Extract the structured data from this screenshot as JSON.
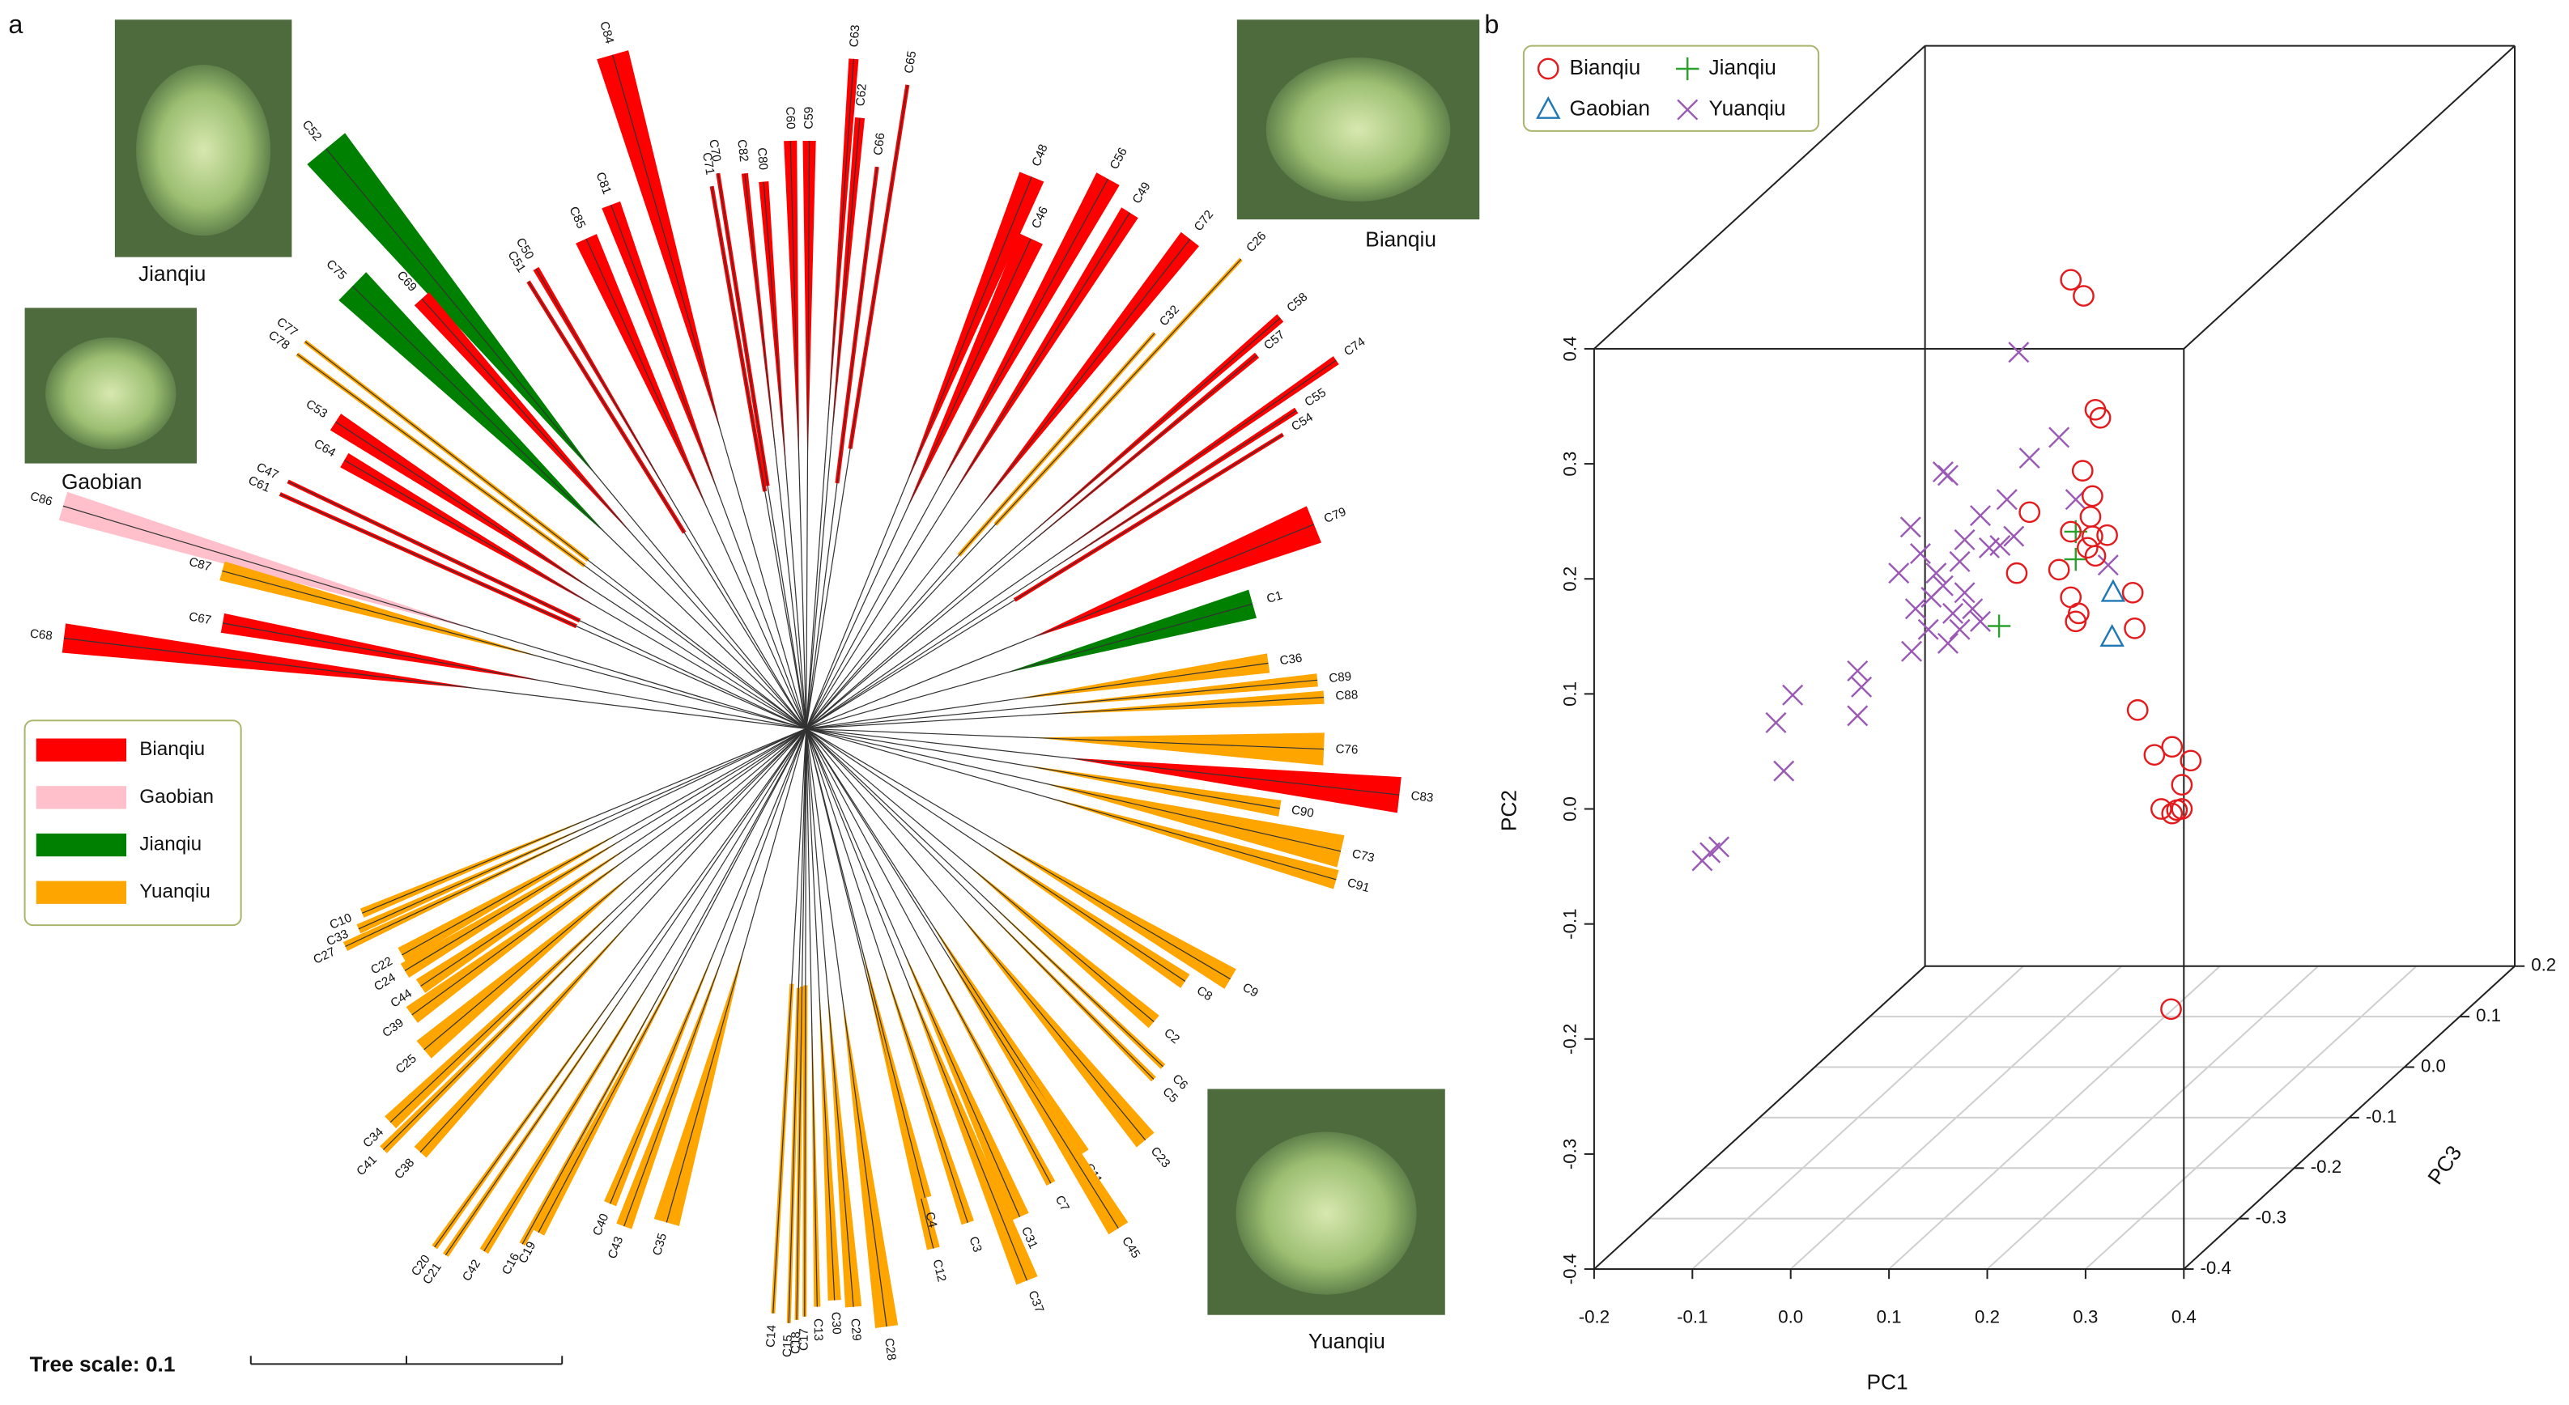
{
  "panel_labels": {
    "a": "a",
    "b": "b"
  },
  "photos": [
    {
      "caption": "Jianqiu"
    },
    {
      "caption": "Gaobian"
    },
    {
      "caption": "Bianqiu"
    },
    {
      "caption": "Yuanqiu"
    }
  ],
  "tree": {
    "legend": [
      {
        "name": "Bianqiu",
        "color": "#ff0000"
      },
      {
        "name": "Gaobian",
        "color": "#ffc0cb"
      },
      {
        "name": "Jianqiu",
        "color": "#008000"
      },
      {
        "name": "Yuanqiu",
        "color": "#ffa500"
      }
    ],
    "scale_label": "Tree scale: 0.1",
    "leaves": [
      {
        "label": "C84",
        "group": "Bianqiu"
      },
      {
        "label": "C81",
        "group": "Bianqiu"
      },
      {
        "label": "C85",
        "group": "Bianqiu"
      },
      {
        "label": "C50",
        "group": "Bianqiu"
      },
      {
        "label": "C51",
        "group": "Bianqiu"
      },
      {
        "label": "C52",
        "group": "Jianqiu"
      },
      {
        "label": "C69",
        "group": "Bianqiu"
      },
      {
        "label": "C75",
        "group": "Jianqiu"
      },
      {
        "label": "C77",
        "group": "Yuanqiu"
      },
      {
        "label": "C78",
        "group": "Yuanqiu"
      },
      {
        "label": "C53",
        "group": "Bianqiu"
      },
      {
        "label": "C64",
        "group": "Bianqiu"
      },
      {
        "label": "C47",
        "group": "Bianqiu"
      },
      {
        "label": "C61",
        "group": "Bianqiu"
      },
      {
        "label": "C86",
        "group": "Gaobian"
      },
      {
        "label": "C87",
        "group": "Yuanqiu"
      },
      {
        "label": "C67",
        "group": "Bianqiu"
      },
      {
        "label": "C68",
        "group": "Bianqiu"
      },
      {
        "label": "C70",
        "group": "Bianqiu"
      },
      {
        "label": "C71",
        "group": "Bianqiu"
      },
      {
        "label": "C82",
        "group": "Bianqiu"
      },
      {
        "label": "C80",
        "group": "Bianqiu"
      },
      {
        "label": "C60",
        "group": "Bianqiu"
      },
      {
        "label": "C59",
        "group": "Bianqiu"
      },
      {
        "label": "C63",
        "group": "Bianqiu"
      },
      {
        "label": "C62",
        "group": "Bianqiu"
      },
      {
        "label": "C65",
        "group": "Bianqiu"
      },
      {
        "label": "C66",
        "group": "Bianqiu"
      },
      {
        "label": "C48",
        "group": "Bianqiu"
      },
      {
        "label": "C46",
        "group": "Bianqiu"
      },
      {
        "label": "C56",
        "group": "Bianqiu"
      },
      {
        "label": "C49",
        "group": "Bianqiu"
      },
      {
        "label": "C72",
        "group": "Bianqiu"
      },
      {
        "label": "C26",
        "group": "Yuanqiu"
      },
      {
        "label": "C32",
        "group": "Yuanqiu"
      },
      {
        "label": "C58",
        "group": "Bianqiu"
      },
      {
        "label": "C57",
        "group": "Bianqiu"
      },
      {
        "label": "C74",
        "group": "Bianqiu"
      },
      {
        "label": "C55",
        "group": "Bianqiu"
      },
      {
        "label": "C54",
        "group": "Bianqiu"
      },
      {
        "label": "C79",
        "group": "Bianqiu"
      },
      {
        "label": "C1",
        "group": "Jianqiu"
      },
      {
        "label": "C36",
        "group": "Yuanqiu"
      },
      {
        "label": "C89",
        "group": "Yuanqiu"
      },
      {
        "label": "C88",
        "group": "Yuanqiu"
      },
      {
        "label": "C76",
        "group": "Yuanqiu"
      },
      {
        "label": "C83",
        "group": "Bianqiu"
      },
      {
        "label": "C90",
        "group": "Yuanqiu"
      },
      {
        "label": "C73",
        "group": "Yuanqiu"
      },
      {
        "label": "C91",
        "group": "Yuanqiu"
      },
      {
        "label": "C9",
        "group": "Yuanqiu"
      },
      {
        "label": "C8",
        "group": "Yuanqiu"
      },
      {
        "label": "C2",
        "group": "Yuanqiu"
      },
      {
        "label": "C6",
        "group": "Yuanqiu"
      },
      {
        "label": "C5",
        "group": "Yuanqiu"
      },
      {
        "label": "C23",
        "group": "Yuanqiu"
      },
      {
        "label": "C11",
        "group": "Yuanqiu"
      },
      {
        "label": "C45",
        "group": "Yuanqiu"
      },
      {
        "label": "C7",
        "group": "Yuanqiu"
      },
      {
        "label": "C31",
        "group": "Yuanqiu"
      },
      {
        "label": "C37",
        "group": "Yuanqiu"
      },
      {
        "label": "C3",
        "group": "Yuanqiu"
      },
      {
        "label": "C12",
        "group": "Yuanqiu"
      },
      {
        "label": "C4",
        "group": "Yuanqiu"
      },
      {
        "label": "C28",
        "group": "Yuanqiu"
      },
      {
        "label": "C29",
        "group": "Yuanqiu"
      },
      {
        "label": "C30",
        "group": "Yuanqiu"
      },
      {
        "label": "C13",
        "group": "Yuanqiu"
      },
      {
        "label": "C17",
        "group": "Yuanqiu"
      },
      {
        "label": "C18",
        "group": "Yuanqiu"
      },
      {
        "label": "C15",
        "group": "Yuanqiu"
      },
      {
        "label": "C14",
        "group": "Yuanqiu"
      },
      {
        "label": "C35",
        "group": "Yuanqiu"
      },
      {
        "label": "C43",
        "group": "Yuanqiu"
      },
      {
        "label": "C40",
        "group": "Yuanqiu"
      },
      {
        "label": "C19",
        "group": "Yuanqiu"
      },
      {
        "label": "C16",
        "group": "Yuanqiu"
      },
      {
        "label": "C42",
        "group": "Yuanqiu"
      },
      {
        "label": "C21",
        "group": "Yuanqiu"
      },
      {
        "label": "C20",
        "group": "Yuanqiu"
      },
      {
        "label": "C38",
        "group": "Yuanqiu"
      },
      {
        "label": "C41",
        "group": "Yuanqiu"
      },
      {
        "label": "C34",
        "group": "Yuanqiu"
      },
      {
        "label": "C25",
        "group": "Yuanqiu"
      },
      {
        "label": "C39",
        "group": "Yuanqiu"
      },
      {
        "label": "C44",
        "group": "Yuanqiu"
      },
      {
        "label": "C24",
        "group": "Yuanqiu"
      },
      {
        "label": "C22",
        "group": "Yuanqiu"
      },
      {
        "label": "C27",
        "group": "Yuanqiu"
      },
      {
        "label": "C33",
        "group": "Yuanqiu"
      },
      {
        "label": "C10",
        "group": "Yuanqiu"
      }
    ]
  },
  "chart_data": {
    "type": "scatter3d",
    "xlabel": "PC1",
    "ylabel": "PC2",
    "zlabel": "PC3",
    "xlim": [
      -0.2,
      0.4
    ],
    "ylim": [
      -0.4,
      0.4
    ],
    "zlim": [
      -0.4,
      0.2
    ],
    "xticks": [
      -0.2,
      -0.1,
      {
        "value": 0,
        "label": "0.0"
      },
      0.1,
      0.2,
      0.3,
      0.4
    ],
    "yticks": [
      -0.4,
      -0.3,
      -0.2,
      -0.1,
      {
        "value": 0,
        "label": "0.0"
      },
      0.1,
      0.2,
      0.3,
      0.4
    ],
    "zticks": [
      -0.4,
      -0.3,
      -0.2,
      -0.1,
      {
        "value": 0,
        "label": "0.0"
      },
      0.1,
      0.2
    ],
    "grid": true,
    "legend": "top-left",
    "series": [
      {
        "name": "Bianqiu",
        "color": "#e41a1c",
        "marker": "circle",
        "x": [
          0.285,
          0.298,
          0.31,
          0.315,
          0.297,
          0.243,
          0.307,
          0.305,
          0.285,
          0.307,
          0.322,
          0.302,
          0.31,
          0.273,
          0.23,
          0.285,
          0.293,
          0.348,
          0.29,
          0.35,
          0.353,
          0.37,
          0.388,
          0.407,
          0.398,
          0.377,
          0.393,
          0.388,
          0.398,
          0.387
        ],
        "y": [
          0.46,
          0.446,
          0.347,
          0.34,
          0.294,
          0.258,
          0.272,
          0.254,
          0.241,
          0.237,
          0.238,
          0.227,
          0.22,
          0.208,
          0.205,
          0.184,
          0.17,
          0.188,
          0.163,
          0.157,
          0.086,
          0.047,
          0.054,
          0.042,
          0.021,
          0.0,
          -0.001,
          -0.004,
          0.0,
          -0.174
        ]
      },
      {
        "name": "Jianqiu",
        "color": "#2ca02c",
        "marker": "plus",
        "x": [
          0.29,
          0.29,
          0.212
        ],
        "y": [
          0.241,
          0.217,
          0.159
        ]
      },
      {
        "name": "Gaobian",
        "color": "#1f77b4",
        "marker": "triangle",
        "x": [
          0.328,
          0.327
        ],
        "y": [
          0.188,
          0.149
        ]
      },
      {
        "name": "Yuanqiu",
        "color": "#9b59b6",
        "marker": "cross",
        "x": [
          0.232,
          0.273,
          0.243,
          0.155,
          0.16,
          0.22,
          0.29,
          0.193,
          0.122,
          0.132,
          0.177,
          0.202,
          0.213,
          0.227,
          0.172,
          0.11,
          0.148,
          0.155,
          0.143,
          0.127,
          0.177,
          0.165,
          0.14,
          0.16,
          0.172,
          0.185,
          0.193,
          0.123,
          0.068,
          0.072,
          0.068,
          0.002,
          -0.015,
          -0.007,
          -0.073,
          -0.082,
          -0.09,
          0.323
        ],
        "y": [
          0.397,
          0.323,
          0.305,
          0.293,
          0.29,
          0.269,
          0.269,
          0.255,
          0.245,
          0.222,
          0.234,
          0.227,
          0.229,
          0.237,
          0.215,
          0.205,
          0.205,
          0.194,
          0.184,
          0.174,
          0.188,
          0.17,
          0.156,
          0.144,
          0.156,
          0.174,
          0.163,
          0.137,
          0.12,
          0.106,
          0.081,
          0.099,
          0.075,
          0.033,
          -0.033,
          -0.038,
          -0.045,
          0.212
        ]
      }
    ]
  }
}
